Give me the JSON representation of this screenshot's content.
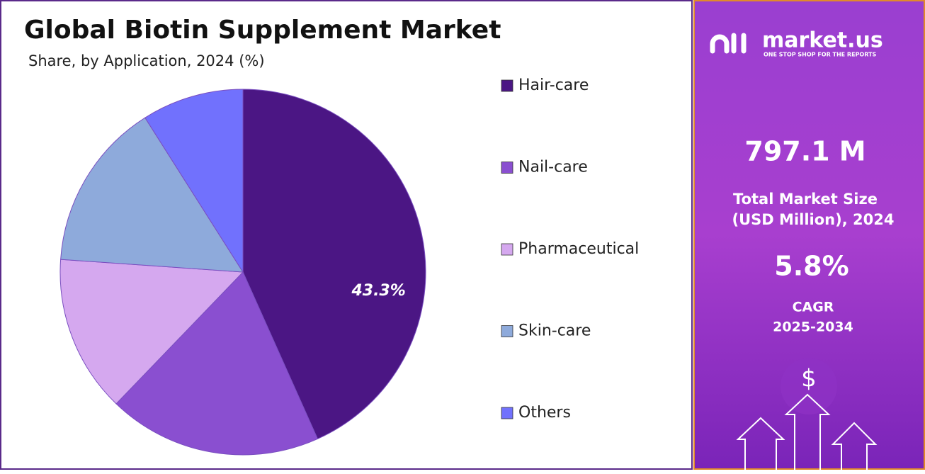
{
  "chart_data": {
    "type": "pie",
    "title": "Global Biotin Supplement Market",
    "subtitle": "Share, by Application, 2024 (%)",
    "categories": [
      "Hair-care",
      "Nail-care",
      "Pharmaceutical",
      "Skin-care",
      "Others"
    ],
    "values": [
      43.3,
      18.9,
      13.9,
      14.9,
      9.0
    ],
    "value_labels": [
      "43.3%",
      null,
      null,
      null,
      null
    ],
    "colors": [
      "#4b1684",
      "#8a4fd0",
      "#d5a8ef",
      "#8eaadb",
      "#7171fd"
    ]
  },
  "sidebar": {
    "brand": "market.us",
    "tagline": "ONE STOP SHOP FOR THE REPORTS",
    "market_size": "797.1 M",
    "market_size_label_1": "Total Market Size",
    "market_size_label_2": "(USD Million), 2024",
    "cagr": "5.8%",
    "cagr_label": "CAGR",
    "cagr_period": "2025-2034",
    "icon": "$"
  }
}
